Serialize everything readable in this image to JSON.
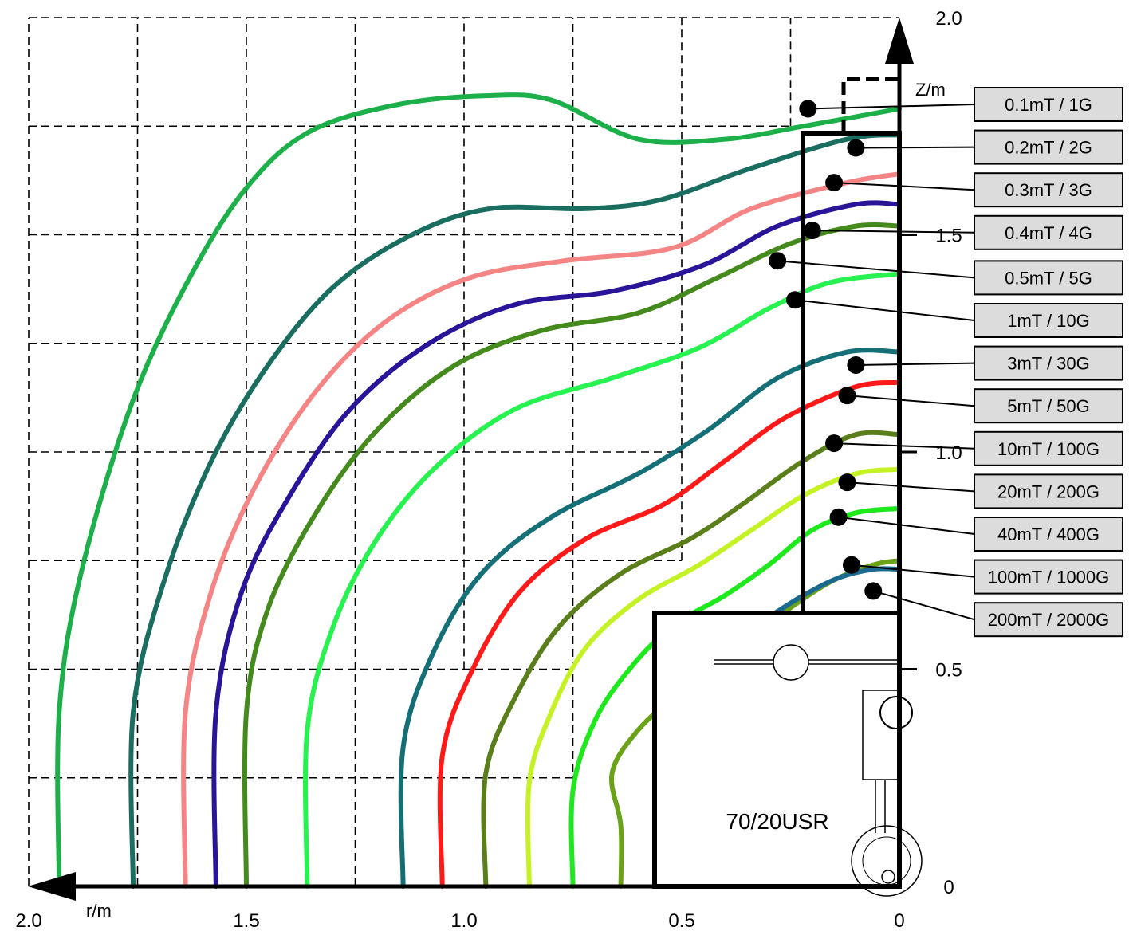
{
  "chart_data": {
    "type": "line",
    "title": "",
    "xlabel": "r/m",
    "ylabel": "Z/m",
    "x_axis_reversed": true,
    "xlim": [
      0,
      2.0
    ],
    "ylim": [
      0,
      2.0
    ],
    "x_ticks": [
      "2.0",
      "1.5",
      "1.0",
      "0.5",
      "0"
    ],
    "y_ticks": [
      "0",
      "0.5",
      "1.0",
      "1.5",
      "2.0"
    ],
    "grid": "dashed, partial",
    "legend_placement": "right",
    "magnet_label": "70/20USR",
    "series": [
      {
        "name": "0.1mT / 1G",
        "color": "#1db04a",
        "points": [
          [
            1.93,
            0
          ],
          [
            1.93,
            0.4
          ],
          [
            1.88,
            0.72
          ],
          [
            1.76,
            1.12
          ],
          [
            1.62,
            1.42
          ],
          [
            1.49,
            1.62
          ],
          [
            1.35,
            1.74
          ],
          [
            1.15,
            1.8
          ],
          [
            0.95,
            1.82
          ],
          [
            0.8,
            1.81
          ],
          [
            0.6,
            1.72
          ],
          [
            0.4,
            1.72
          ],
          [
            0.22,
            1.75
          ],
          [
            0,
            1.79
          ]
        ]
      },
      {
        "name": "0.2mT / 2G",
        "color": "#1a6e60",
        "points": [
          [
            1.76,
            0
          ],
          [
            1.76,
            0.4
          ],
          [
            1.69,
            0.7
          ],
          [
            1.58,
            0.98
          ],
          [
            1.45,
            1.2
          ],
          [
            1.3,
            1.38
          ],
          [
            1.12,
            1.5
          ],
          [
            0.94,
            1.56
          ],
          [
            0.72,
            1.56
          ],
          [
            0.55,
            1.58
          ],
          [
            0.35,
            1.65
          ],
          [
            0.12,
            1.72
          ],
          [
            0,
            1.73
          ]
        ]
      },
      {
        "name": "0.3mT / 3G",
        "color": "#f58585",
        "points": [
          [
            1.64,
            0
          ],
          [
            1.64,
            0.4
          ],
          [
            1.58,
            0.68
          ],
          [
            1.48,
            0.92
          ],
          [
            1.34,
            1.14
          ],
          [
            1.18,
            1.3
          ],
          [
            0.99,
            1.4
          ],
          [
            0.77,
            1.44
          ],
          [
            0.52,
            1.47
          ],
          [
            0.34,
            1.56
          ],
          [
            0.12,
            1.62
          ],
          [
            0,
            1.64
          ]
        ]
      },
      {
        "name": "0.4mT / 4G",
        "color": "#2a1598",
        "points": [
          [
            1.57,
            0
          ],
          [
            1.57,
            0.4
          ],
          [
            1.51,
            0.68
          ],
          [
            1.4,
            0.9
          ],
          [
            1.26,
            1.1
          ],
          [
            1.08,
            1.25
          ],
          [
            0.88,
            1.34
          ],
          [
            0.66,
            1.37
          ],
          [
            0.45,
            1.43
          ],
          [
            0.28,
            1.52
          ],
          [
            0.1,
            1.57
          ],
          [
            0,
            1.57
          ]
        ]
      },
      {
        "name": "0.5mT / 5G",
        "color": "#458a1c",
        "points": [
          [
            1.5,
            0
          ],
          [
            1.5,
            0.4
          ],
          [
            1.45,
            0.64
          ],
          [
            1.34,
            0.86
          ],
          [
            1.2,
            1.05
          ],
          [
            1.02,
            1.2
          ],
          [
            0.82,
            1.28
          ],
          [
            0.6,
            1.32
          ],
          [
            0.42,
            1.4
          ],
          [
            0.25,
            1.48
          ],
          [
            0.1,
            1.52
          ],
          [
            0,
            1.52
          ]
        ]
      },
      {
        "name": "1mT / 10G",
        "color": "#27f250",
        "points": [
          [
            1.36,
            0
          ],
          [
            1.36,
            0.36
          ],
          [
            1.3,
            0.6
          ],
          [
            1.2,
            0.8
          ],
          [
            1.06,
            0.97
          ],
          [
            0.88,
            1.1
          ],
          [
            0.66,
            1.17
          ],
          [
            0.46,
            1.24
          ],
          [
            0.3,
            1.33
          ],
          [
            0.16,
            1.39
          ],
          [
            0,
            1.41
          ]
        ]
      },
      {
        "name": "3mT / 30G",
        "color": "#156f76",
        "points": [
          [
            1.14,
            0
          ],
          [
            1.14,
            0.32
          ],
          [
            1.07,
            0.54
          ],
          [
            0.96,
            0.72
          ],
          [
            0.8,
            0.85
          ],
          [
            0.6,
            0.95
          ],
          [
            0.44,
            1.05
          ],
          [
            0.28,
            1.17
          ],
          [
            0.12,
            1.23
          ],
          [
            0,
            1.23
          ]
        ]
      },
      {
        "name": "5mT / 50G",
        "color": "#ff1a1a",
        "points": [
          [
            1.05,
            0
          ],
          [
            1.05,
            0.3
          ],
          [
            0.98,
            0.5
          ],
          [
            0.87,
            0.68
          ],
          [
            0.72,
            0.8
          ],
          [
            0.54,
            0.88
          ],
          [
            0.4,
            0.98
          ],
          [
            0.26,
            1.08
          ],
          [
            0.1,
            1.15
          ],
          [
            0,
            1.16
          ]
        ]
      },
      {
        "name": "10mT / 100G",
        "color": "#5a7f1a",
        "points": [
          [
            0.95,
            0
          ],
          [
            0.95,
            0.26
          ],
          [
            0.88,
            0.44
          ],
          [
            0.78,
            0.6
          ],
          [
            0.64,
            0.72
          ],
          [
            0.48,
            0.8
          ],
          [
            0.36,
            0.88
          ],
          [
            0.22,
            0.98
          ],
          [
            0.1,
            1.04
          ],
          [
            0,
            1.04
          ]
        ]
      },
      {
        "name": "20mT / 200G",
        "color": "#c4f224",
        "points": [
          [
            0.85,
            0
          ],
          [
            0.85,
            0.24
          ],
          [
            0.8,
            0.4
          ],
          [
            0.72,
            0.55
          ],
          [
            0.6,
            0.66
          ],
          [
            0.46,
            0.74
          ],
          [
            0.34,
            0.82
          ],
          [
            0.22,
            0.9
          ],
          [
            0.1,
            0.95
          ],
          [
            0,
            0.96
          ]
        ]
      },
      {
        "name": "40mT / 400G",
        "color": "#1de91d",
        "points": [
          [
            0.75,
            0
          ],
          [
            0.75,
            0.22
          ],
          [
            0.7,
            0.38
          ],
          [
            0.62,
            0.5
          ],
          [
            0.52,
            0.6
          ],
          [
            0.4,
            0.67
          ],
          [
            0.3,
            0.74
          ],
          [
            0.2,
            0.82
          ],
          [
            0.1,
            0.86
          ],
          [
            0,
            0.87
          ]
        ]
      },
      {
        "name": "100mT / 1000G",
        "color": "#6aa21a",
        "points": [
          [
            0.64,
            0
          ],
          [
            0.64,
            0.14
          ],
          [
            0.66,
            0.26
          ],
          [
            0.6,
            0.36
          ],
          [
            0.5,
            0.45
          ],
          [
            0.38,
            0.54
          ],
          [
            0.28,
            0.62
          ],
          [
            0.16,
            0.7
          ],
          [
            0.06,
            0.74
          ],
          [
            0,
            0.75
          ]
        ]
      },
      {
        "name": "200mT / 2000G",
        "color": "#1a6a8f",
        "points": [
          [
            0.3,
            0.62
          ],
          [
            0.22,
            0.67
          ],
          [
            0.14,
            0.71
          ],
          [
            0.06,
            0.73
          ],
          [
            0,
            0.73
          ]
        ]
      }
    ],
    "legend_markers": [
      {
        "r": 0.21,
        "z": 1.79
      },
      {
        "r": 0.1,
        "z": 1.7
      },
      {
        "r": 0.15,
        "z": 1.62
      },
      {
        "r": 0.2,
        "z": 1.51
      },
      {
        "r": 0.28,
        "z": 1.44
      },
      {
        "r": 0.24,
        "z": 1.35
      },
      {
        "r": 0.1,
        "z": 1.2
      },
      {
        "r": 0.12,
        "z": 1.13
      },
      {
        "r": 0.15,
        "z": 1.02
      },
      {
        "r": 0.12,
        "z": 0.93
      },
      {
        "r": 0.14,
        "z": 0.85
      },
      {
        "r": 0.11,
        "z": 0.74
      },
      {
        "r": 0.06,
        "z": 0.68
      }
    ]
  }
}
